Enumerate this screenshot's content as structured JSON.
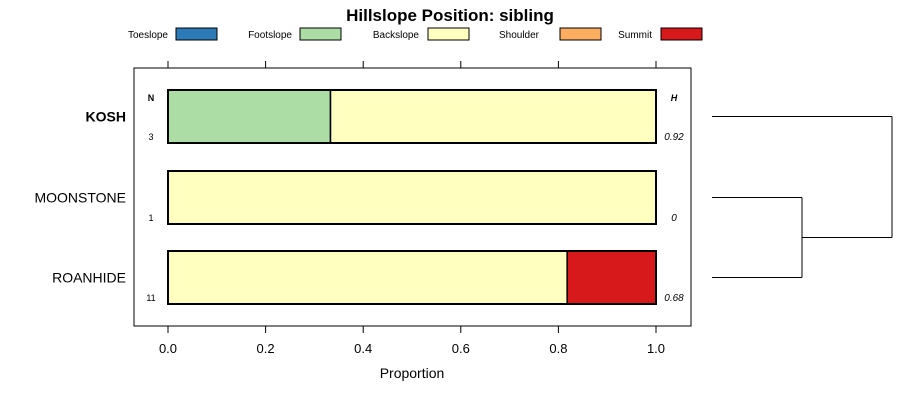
{
  "chart_data": {
    "type": "bar",
    "stacked": true,
    "orientation": "horizontal",
    "title": "Hillslope Position: sibling",
    "xlabel": "Proportion",
    "xlim": [
      0,
      1
    ],
    "xticks": [
      0.0,
      0.2,
      0.4,
      0.6,
      0.8,
      1.0
    ],
    "xtick_labels": [
      "0.0",
      "0.2",
      "0.4",
      "0.6",
      "0.8",
      "1.0"
    ],
    "legend_position": "top",
    "categories": [
      {
        "name": "KOSH",
        "bold": true,
        "n": "3",
        "h": "0.92"
      },
      {
        "name": "MOONSTONE",
        "bold": false,
        "n": "1",
        "h": "0"
      },
      {
        "name": "ROANHIDE",
        "bold": false,
        "n": "11",
        "h": "0.68"
      }
    ],
    "n_header": "N",
    "h_header": "H",
    "series": [
      {
        "name": "Toeslope",
        "color": "#2C7BB6",
        "values": [
          0,
          0,
          0
        ]
      },
      {
        "name": "Footslope",
        "color": "#ABDDA4",
        "values": [
          0.333,
          0,
          0
        ]
      },
      {
        "name": "Backslope",
        "color": "#FFFFBF",
        "values": [
          0.667,
          1.0,
          0.818
        ]
      },
      {
        "name": "Shoulder",
        "color": "#FDAE61",
        "values": [
          0,
          0,
          0
        ]
      },
      {
        "name": "Summit",
        "color": "#D7191C",
        "values": [
          0,
          0,
          0.182
        ]
      }
    ],
    "dendrogram": {
      "merges": [
        {
          "left": "MOONSTONE",
          "right": "ROANHIDE",
          "height": 0.5
        },
        {
          "left": "KOSH",
          "right": "MOONSTONE+ROANHIDE",
          "height": 1.0
        }
      ]
    }
  }
}
